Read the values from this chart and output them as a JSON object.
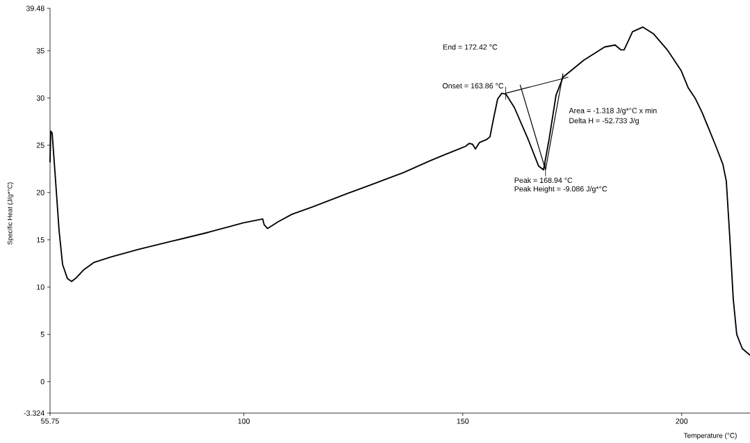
{
  "chart_data": {
    "type": "line",
    "xlabel": "Temperature (°C)",
    "ylabel": "Specific Heat (J/g*°C)",
    "xlim": [
      55.75,
      215.6
    ],
    "ylim": [
      -3.324,
      39.48
    ],
    "xticks": [
      55.75,
      100,
      150,
      200
    ],
    "yticks": [
      -3.324,
      0,
      5,
      10,
      15,
      20,
      25,
      30,
      35,
      39.48
    ],
    "series": [
      {
        "color": "#000000",
        "x": [
          55.75,
          55.91,
          56.23,
          57.02,
          57.81,
          58.61,
          59.72,
          60.67,
          61.78,
          63.37,
          65.75,
          69.72,
          76.07,
          84.0,
          91.94,
          96.7,
          99.9,
          104.32,
          104.64,
          105.43,
          107.81,
          110.99,
          115.75,
          123.69,
          130.04,
          136.38,
          142.73,
          145.9,
          149.08,
          150.67,
          151.46,
          152.25,
          152.89,
          153.84,
          155.43,
          156.22,
          157.02,
          157.97,
          158.92,
          159.87,
          161.78,
          164.95,
          167.33,
          168.44,
          169.71,
          171.3,
          172.9,
          177.65,
          182.42,
          184.8,
          186.07,
          186.86,
          188.77,
          191.15,
          193.53,
          196.7,
          199.87,
          201.46,
          203.05,
          204.64,
          207.81,
          209.4,
          210.19,
          210.98,
          211.78,
          212.57,
          213.84,
          215.6
        ],
        "values": [
          23.2,
          26.5,
          26.3,
          21.2,
          16.0,
          12.4,
          10.9,
          10.6,
          11.0,
          11.8,
          12.6,
          13.2,
          14.0,
          14.9,
          15.8,
          16.4,
          16.8,
          17.2,
          16.6,
          16.2,
          16.9,
          17.7,
          18.5,
          19.9,
          21.0,
          22.1,
          23.4,
          24.0,
          24.6,
          24.9,
          25.2,
          25.1,
          24.6,
          25.3,
          25.6,
          25.9,
          27.8,
          29.9,
          30.5,
          30.4,
          29.0,
          25.6,
          22.8,
          22.4,
          25.6,
          30.3,
          32.2,
          34.0,
          35.4,
          35.6,
          35.1,
          35.1,
          37.0,
          37.5,
          36.8,
          35.1,
          32.9,
          31.1,
          30.0,
          28.5,
          24.9,
          23.0,
          21.2,
          15.3,
          8.7,
          5.0,
          3.5,
          2.8
        ]
      },
      {
        "color": "#000000",
        "x": [
          159.8,
          174.1
        ],
        "values": [
          30.5,
          32.2
        ]
      },
      {
        "color": "#000000",
        "x": [
          163.1,
          168.9
        ],
        "values": [
          31.4,
          22.4
        ]
      },
      {
        "color": "#000000",
        "x": [
          168.9,
          172.9
        ],
        "values": [
          22.4,
          32.6
        ]
      }
    ],
    "annotations": [
      {
        "text": "Onset = 163.86 °C",
        "x": 159.8,
        "y": 30.5
      },
      "End = 172.42 °C",
      "Area = -1.318 J/g*°C x min",
      "Delta H = -52.733 J/g",
      {
        "text": "Peak = 168.94 °C",
        "x": 168.9,
        "y": 22.4
      },
      "Peak Height = -9.086 J/g*°C"
    ]
  }
}
